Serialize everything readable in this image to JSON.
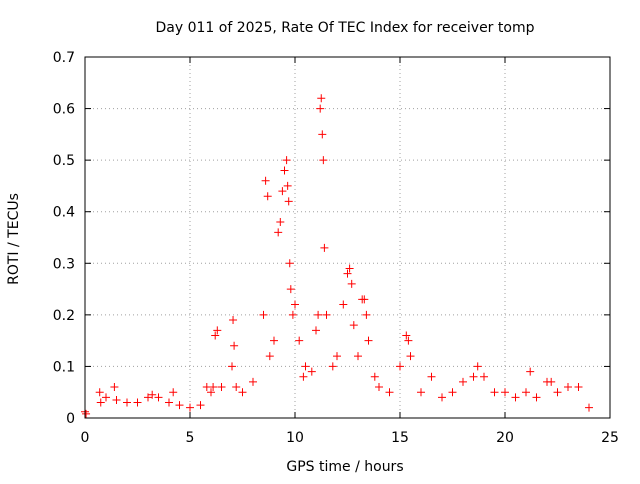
{
  "chart_data": {
    "type": "scatter",
    "title": "Day 011 of 2025, Rate Of TEC Index for receiver tomp",
    "xlabel": "GPS time / hours",
    "ylabel": "ROTI / TECUs",
    "xlim": [
      0,
      25
    ],
    "ylim": [
      0,
      0.7
    ],
    "xticks": [
      0,
      5,
      10,
      15,
      20,
      25
    ],
    "yticks": [
      0,
      0.1,
      0.2,
      0.3,
      0.4,
      0.5,
      0.6,
      0.7
    ],
    "xtick_labels": [
      "0",
      "5",
      "10",
      "15",
      "20",
      "25"
    ],
    "ytick_labels": [
      "0",
      "0.1",
      "0.2",
      "0.3",
      "0.4",
      "0.5",
      "0.6",
      "0.7"
    ],
    "grid": true,
    "marker": "plus",
    "color": "#ff0000",
    "series": [
      {
        "x": [
          0.0,
          0.05,
          0.7,
          0.75,
          1.0,
          1.4,
          1.5,
          2.0,
          2.5,
          3.0,
          3.2,
          3.5,
          4.0,
          4.2,
          4.5,
          5.0,
          5.5,
          5.8,
          6.0,
          6.1,
          6.2,
          6.3,
          6.5,
          7.0,
          7.05,
          7.1,
          7.2,
          7.5,
          8.0,
          8.5,
          8.6,
          8.7,
          8.8,
          9.0,
          9.2,
          9.3,
          9.4,
          9.5,
          9.6,
          9.65,
          9.7,
          9.75,
          9.8,
          9.9,
          10.0,
          10.2,
          10.4,
          10.5,
          10.8,
          11.0,
          11.1,
          11.2,
          11.25,
          11.3,
          11.35,
          11.4,
          11.5,
          11.8,
          12.0,
          12.3,
          12.5,
          12.6,
          12.7,
          12.8,
          13.0,
          13.2,
          13.3,
          13.4,
          13.5,
          13.8,
          14.0,
          14.5,
          15.0,
          15.3,
          15.4,
          15.5,
          16.0,
          16.5,
          17.0,
          17.5,
          18.0,
          18.5,
          18.7,
          19.0,
          19.5,
          20.0,
          20.5,
          21.0,
          21.2,
          21.5,
          22.0,
          22.2,
          22.5,
          23.0,
          23.5,
          24.0
        ],
        "y": [
          0.012,
          0.008,
          0.05,
          0.03,
          0.04,
          0.06,
          0.035,
          0.03,
          0.03,
          0.04,
          0.045,
          0.04,
          0.03,
          0.05,
          0.025,
          0.02,
          0.025,
          0.06,
          0.05,
          0.06,
          0.16,
          0.17,
          0.06,
          0.1,
          0.19,
          0.14,
          0.06,
          0.05,
          0.07,
          0.2,
          0.46,
          0.43,
          0.12,
          0.15,
          0.36,
          0.38,
          0.44,
          0.48,
          0.5,
          0.45,
          0.42,
          0.3,
          0.25,
          0.2,
          0.22,
          0.15,
          0.08,
          0.1,
          0.09,
          0.17,
          0.2,
          0.6,
          0.62,
          0.55,
          0.5,
          0.33,
          0.2,
          0.1,
          0.12,
          0.22,
          0.28,
          0.29,
          0.26,
          0.18,
          0.12,
          0.23,
          0.23,
          0.2,
          0.15,
          0.08,
          0.06,
          0.05,
          0.1,
          0.16,
          0.15,
          0.12,
          0.05,
          0.08,
          0.04,
          0.05,
          0.07,
          0.08,
          0.1,
          0.08,
          0.05,
          0.05,
          0.04,
          0.05,
          0.09,
          0.04,
          0.07,
          0.07,
          0.05,
          0.06,
          0.06,
          0.02
        ]
      }
    ]
  }
}
